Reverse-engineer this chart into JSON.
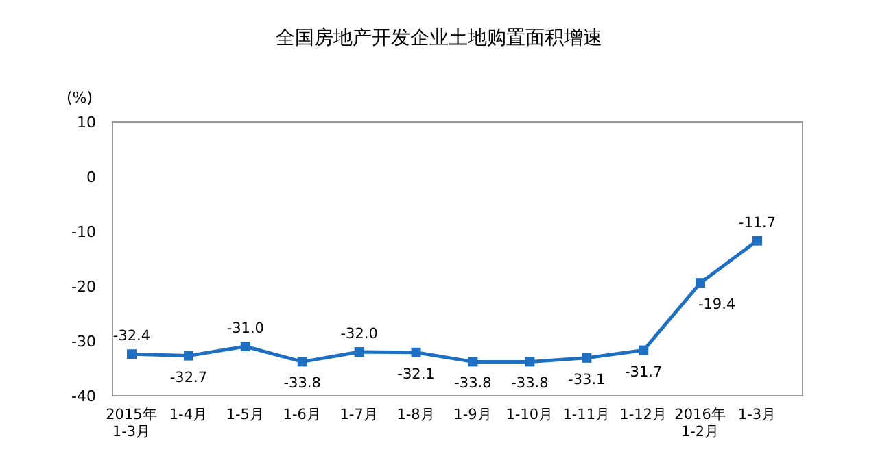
{
  "chart_data": {
    "type": "line",
    "title": "全国房地产开发企业土地购置面积增速",
    "ylabel": "(%)",
    "categories": [
      "2015年\n1-3月",
      "1-4月",
      "1-5月",
      "1-6月",
      "1-7月",
      "1-8月",
      "1-9月",
      "1-10月",
      "1-11月",
      "1-12月",
      "2016年\n1-2月",
      "1-3月"
    ],
    "series": [
      {
        "color": "#1e6fc1",
        "values": [
          -32.4,
          -32.7,
          -31.0,
          -33.8,
          -32.0,
          -32.1,
          -33.8,
          -33.8,
          -33.1,
          -31.7,
          -19.4,
          -11.7
        ],
        "value_labels": [
          "-32.4",
          "-32.7",
          "-31.0",
          "-33.8",
          "-32.0",
          "-32.1",
          "-33.8",
          "-33.8",
          "-33.1",
          "-31.7",
          "-19.4",
          "-11.7"
        ]
      }
    ],
    "ylim": [
      -40,
      10
    ],
    "yticks": [
      -40,
      -30,
      -20,
      -10,
      0,
      10
    ],
    "marker": "square",
    "line_style": "solid"
  }
}
